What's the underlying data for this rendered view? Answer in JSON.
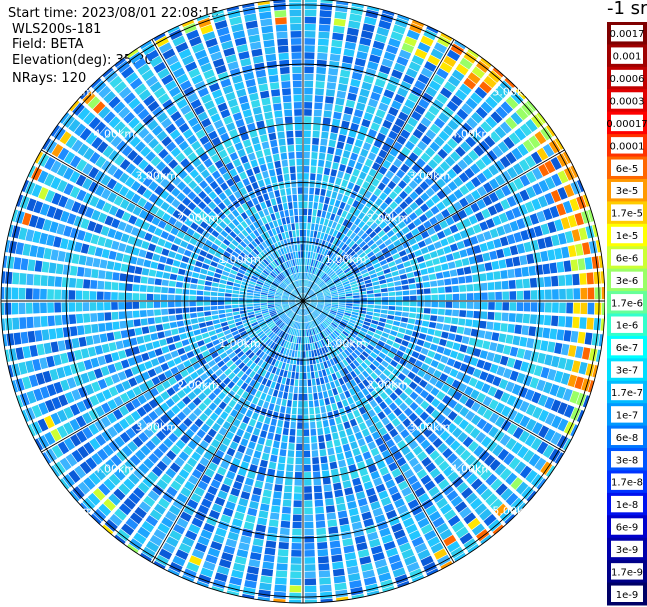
{
  "header": {
    "start_time": "Start time: 2023/08/01 22:08:15",
    "instrument": "WLS200s-181",
    "field": "Field: BETA",
    "elevation": "Elevation(deg): 35.30",
    "nrays": "NRays: 120"
  },
  "colorbar": {
    "unit": "-1 sr",
    "labels": [
      "0.0017",
      "0.001",
      "0.0006",
      "0.0003",
      "0.00017",
      "0.0001",
      "6e-5",
      "3e-5",
      "1.7e-5",
      "1e-5",
      "6e-6",
      "3e-6",
      "1.7e-6",
      "1e-6",
      "6e-7",
      "3e-7",
      "1.7e-7",
      "1e-7",
      "6e-8",
      "3e-8",
      "1.7e-8",
      "1e-8",
      "6e-9",
      "3e-9",
      "1.7e-9",
      "1e-9"
    ],
    "colors": [
      "#7f0000",
      "#9f0000",
      "#c00000",
      "#e00000",
      "#ff0000",
      "#ff3300",
      "#ff6600",
      "#ff9900",
      "#ffcc00",
      "#ffff00",
      "#ccff33",
      "#99ff66",
      "#66ff99",
      "#33ffcc",
      "#00ffff",
      "#00ddff",
      "#00bbff",
      "#0099ff",
      "#0077ff",
      "#0055ff",
      "#0033ff",
      "#0011ee",
      "#0000cc",
      "#0000aa",
      "#000088",
      "#000066"
    ]
  },
  "chart_data": {
    "type": "heatmap",
    "projection": "polar (PPI)",
    "field": "BETA",
    "elevation_deg": 35.3,
    "n_rays": 120,
    "range_rings_km": [
      1.0,
      2.0,
      3.0,
      4.0,
      5.0
    ],
    "range_ring_labels": [
      "1.00km",
      "2.00km",
      "3.00km",
      "4.00km",
      "5.00km"
    ],
    "max_range_km": 5.1,
    "radial_lines_deg": [
      0,
      30,
      60,
      90,
      120,
      150,
      180,
      210,
      240,
      270,
      300,
      330
    ],
    "colormap": "jet",
    "value_range": [
      1e-09,
      0.0017
    ],
    "dominant_value_approx": 1e-07,
    "enhanced_band": {
      "range_km": [
        4.5,
        5.1
      ],
      "azimuth_deg_approx": [
        20,
        110
      ],
      "value_approx": 1e-05
    }
  }
}
